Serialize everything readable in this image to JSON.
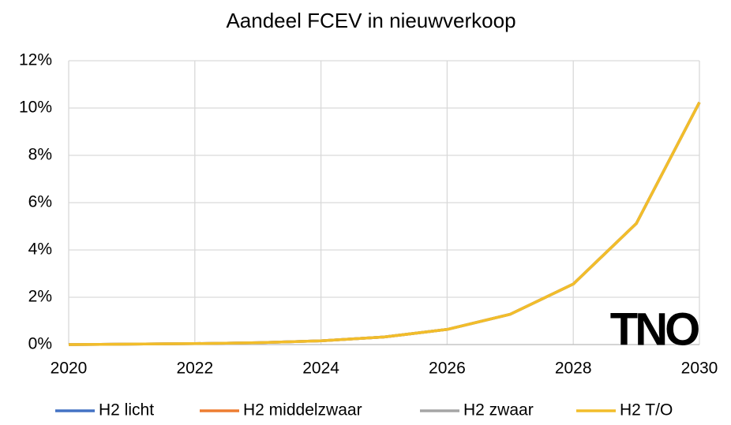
{
  "chart_data": {
    "type": "line",
    "title": "Aandeel FCEV in nieuwverkoop",
    "x": [
      2020,
      2021,
      2022,
      2023,
      2024,
      2025,
      2026,
      2027,
      2028,
      2029,
      2030
    ],
    "series": [
      {
        "name": "H2 licht",
        "color": "#4472c4",
        "values": [
          0,
          0.02,
          0.04,
          0.08,
          0.16,
          0.32,
          0.64,
          1.28,
          2.56,
          5.12,
          10.24
        ]
      },
      {
        "name": "H2 middelzwaar",
        "color": "#ed7d31",
        "values": [
          0,
          0.02,
          0.04,
          0.08,
          0.16,
          0.32,
          0.64,
          1.28,
          2.56,
          5.12,
          10.24
        ]
      },
      {
        "name": "H2 zwaar",
        "color": "#a5a5a5",
        "values": [
          0,
          0.02,
          0.04,
          0.08,
          0.16,
          0.32,
          0.64,
          1.28,
          2.56,
          5.12,
          10.24
        ]
      },
      {
        "name": "H2 T/O",
        "color": "#f2bd2a",
        "values": [
          0,
          0.02,
          0.04,
          0.08,
          0.16,
          0.32,
          0.64,
          1.28,
          2.56,
          5.12,
          10.24
        ]
      }
    ],
    "xlim": [
      2020,
      2030
    ],
    "xticks": [
      2020,
      2022,
      2024,
      2026,
      2028,
      2030
    ],
    "ylim": [
      0,
      12
    ],
    "yticks": [
      {
        "value": 0,
        "label": "0%"
      },
      {
        "value": 2,
        "label": "2%"
      },
      {
        "value": 4,
        "label": "4%"
      },
      {
        "value": 6,
        "label": "6%"
      },
      {
        "value": 8,
        "label": "8%"
      },
      {
        "value": 10,
        "label": "10%"
      },
      {
        "value": 12,
        "label": "12%"
      }
    ],
    "grid": true,
    "legend": "bottom",
    "logo": "TNO"
  }
}
